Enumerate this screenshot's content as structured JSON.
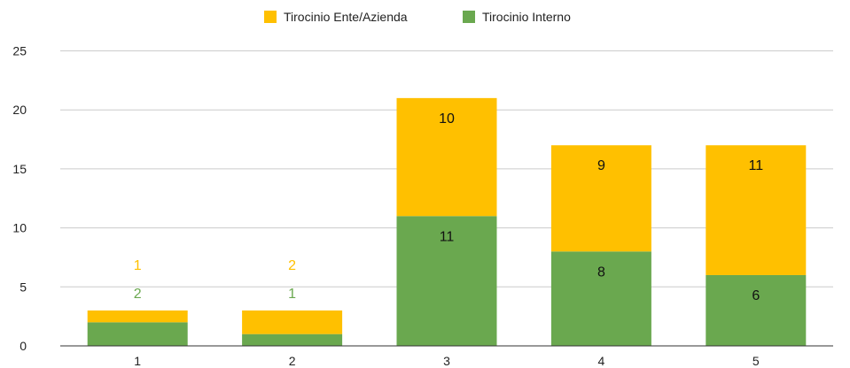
{
  "chart_data": {
    "type": "bar",
    "stacked": true,
    "categories": [
      "1",
      "2",
      "3",
      "4",
      "5"
    ],
    "series": [
      {
        "name": "Tirocinio Interno",
        "values": [
          2,
          1,
          11,
          8,
          6
        ],
        "color": "#6aa84f"
      },
      {
        "name": "Tirocinio Ente/Azienda",
        "values": [
          1,
          2,
          10,
          9,
          11
        ],
        "color": "#ffc000"
      }
    ],
    "legend_order": [
      "Tirocinio Ente/Azienda",
      "Tirocinio Interno"
    ],
    "legend_position": "top",
    "ylim": [
      0,
      25
    ],
    "yticks": [
      0,
      5,
      10,
      15,
      20,
      25
    ],
    "grid": true,
    "title": "",
    "xlabel": "",
    "ylabel": ""
  }
}
